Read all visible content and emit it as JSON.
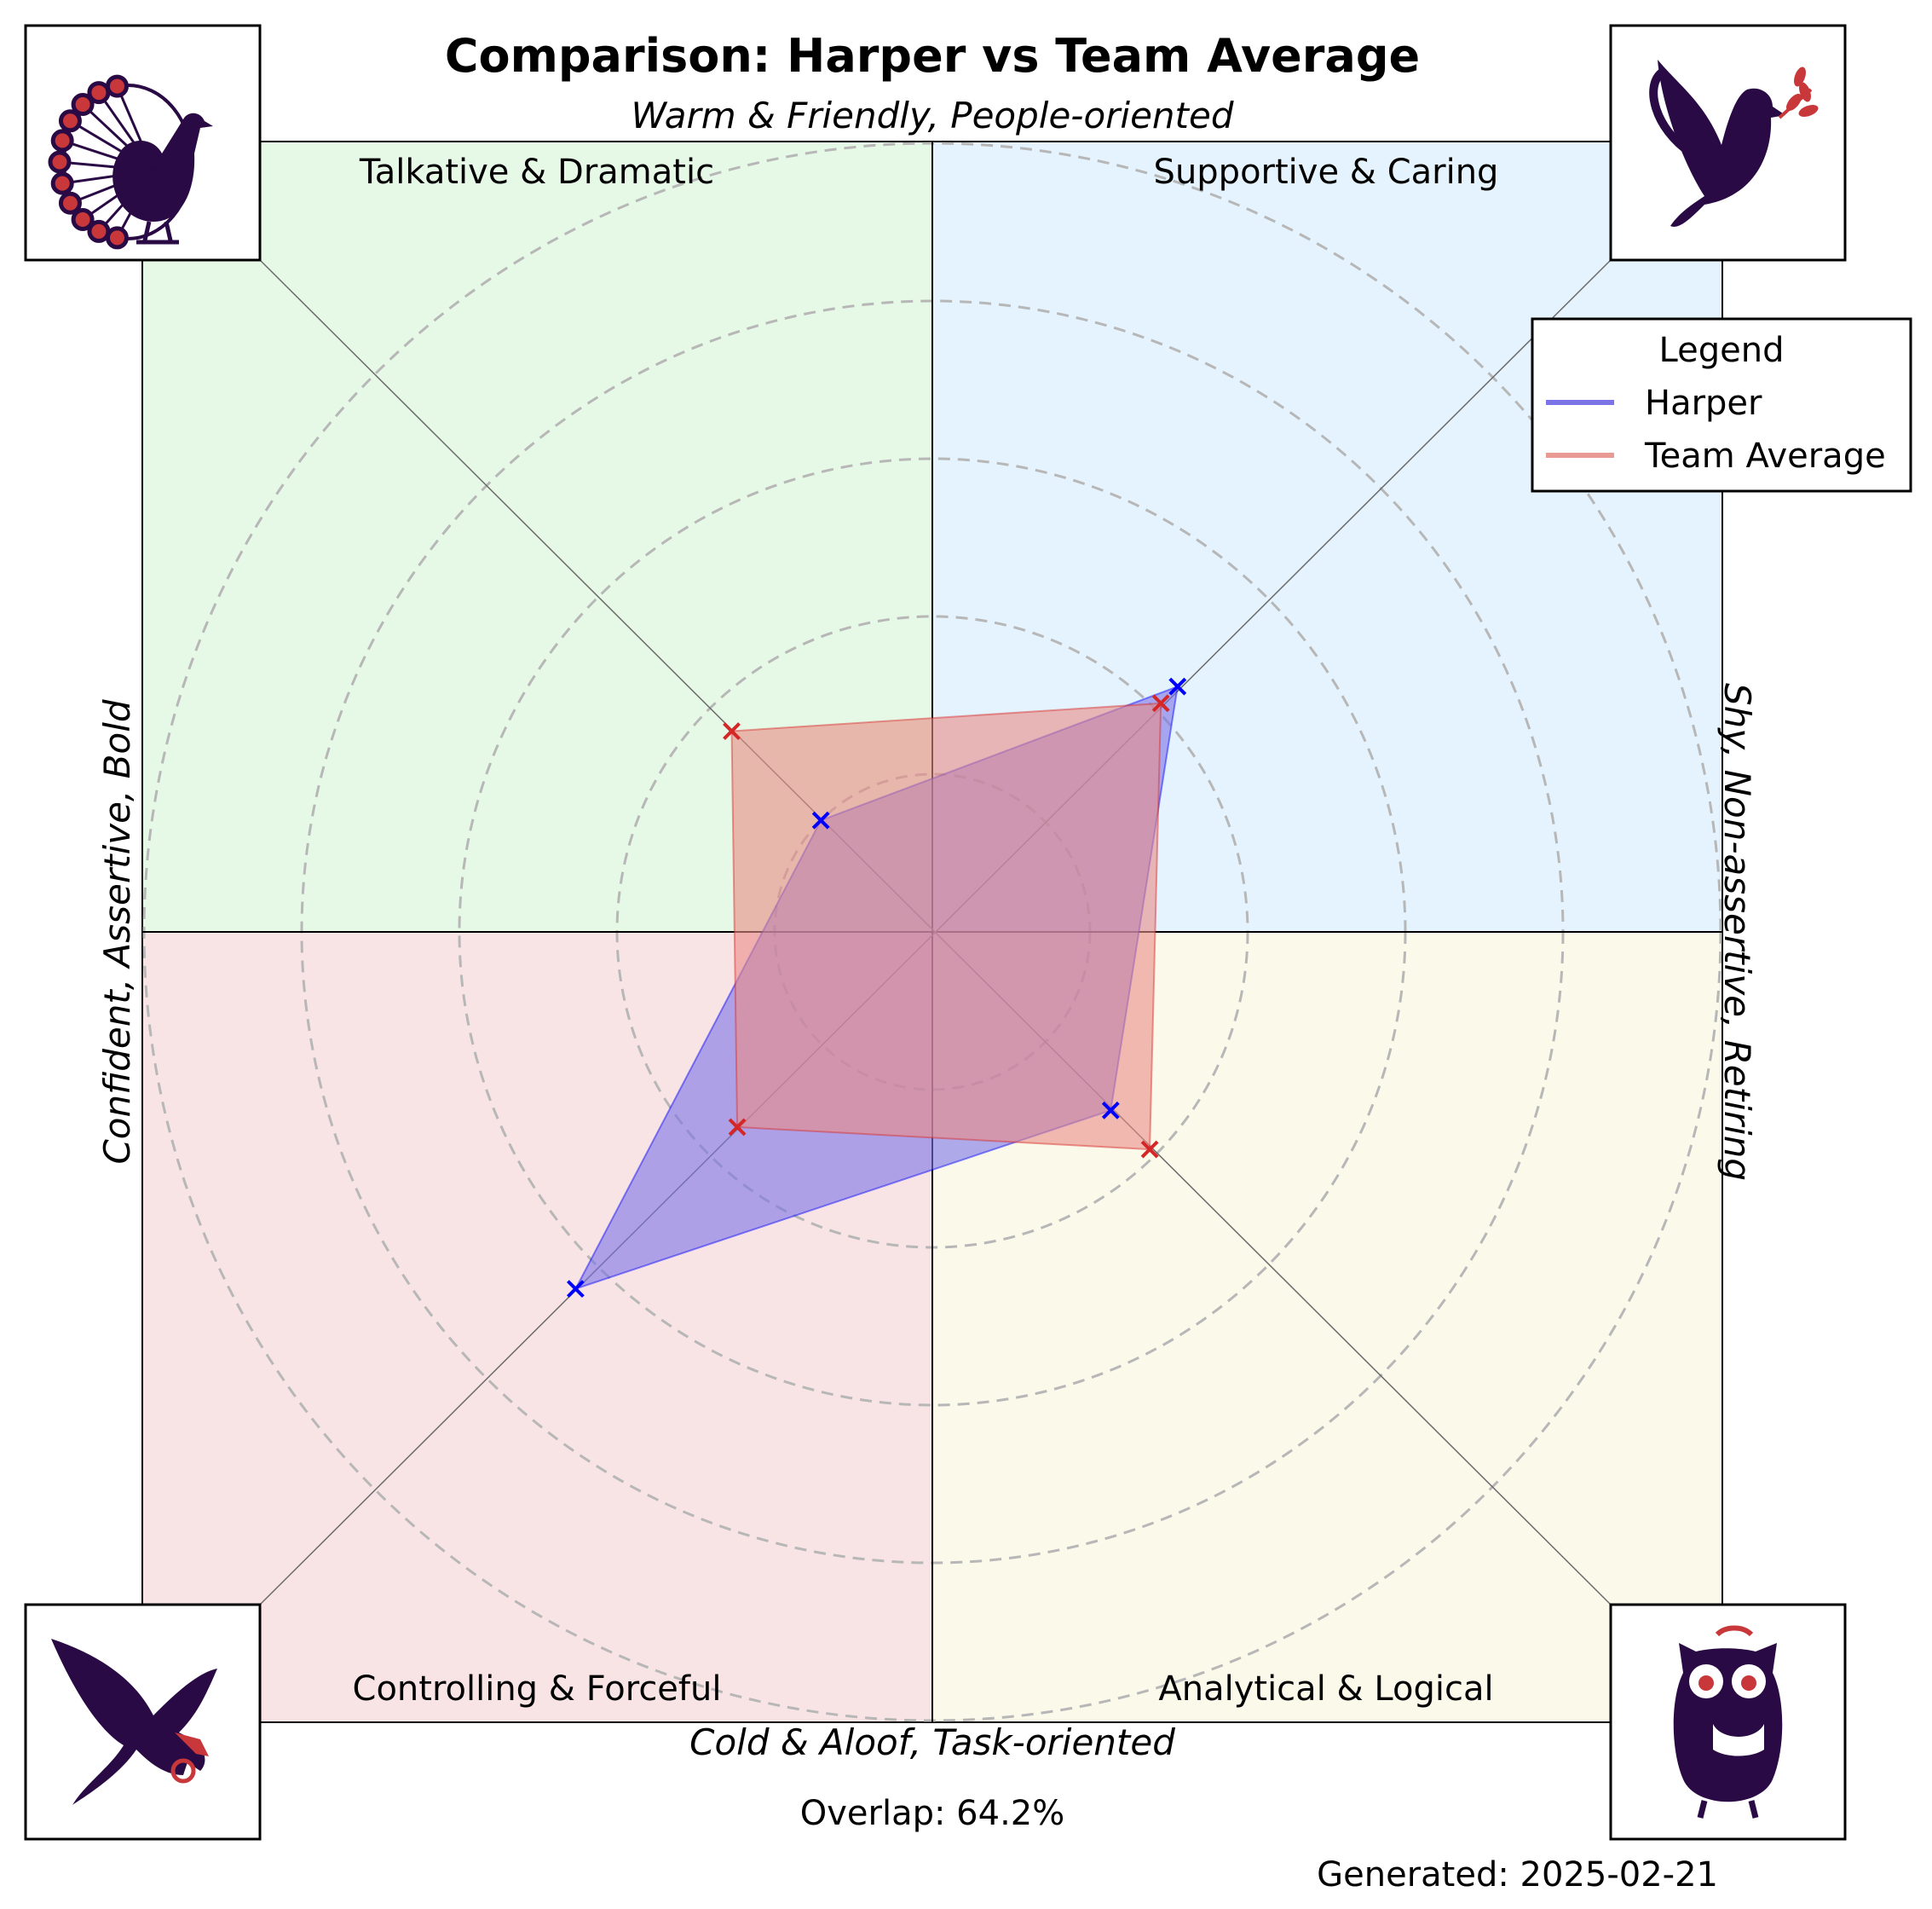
{
  "chart_data": {
    "type": "radar",
    "title": "Comparison: Harper vs Team Average",
    "axis_labels": {
      "top": "Warm & Friendly, People-oriented",
      "bottom": "Cold & Aloof, Task-oriented",
      "left": "Confident, Assertive, Bold",
      "right": "Shy, Non-assertive, Retiring"
    },
    "quadrants": [
      {
        "label": "Talkative & Dramatic",
        "position": "top-left",
        "color": "#e6f8e6",
        "icon": "peacock-icon"
      },
      {
        "label": "Supportive & Caring",
        "position": "top-right",
        "color": "#e4f3fd",
        "icon": "dove-icon"
      },
      {
        "label": "Controlling & Forceful",
        "position": "bottom-left",
        "color": "#f9e4e5",
        "icon": "eagle-icon"
      },
      {
        "label": "Analytical & Logical",
        "position": "bottom-right",
        "color": "#faf9ea",
        "icon": "owl-icon"
      }
    ],
    "radial_max": 5,
    "rings": [
      1,
      2,
      3,
      4,
      5
    ],
    "grid": true,
    "directions": [
      "Supportive & Caring",
      "Talkative & Dramatic",
      "Controlling & Forceful",
      "Analytical & Logical"
    ],
    "series": [
      {
        "name": "Harper",
        "color": "#0000ff",
        "fill": "#7b73e6",
        "values": [
          2.2,
          1.0,
          3.2,
          1.6
        ]
      },
      {
        "name": "Team Average",
        "color": "#d62728",
        "fill": "#e98c85",
        "values": [
          2.05,
          1.8,
          1.75,
          1.95
        ]
      }
    ],
    "legend": {
      "title": "Legend",
      "position": "top-right"
    },
    "overlap_text": "Overlap: 64.2%",
    "generated_text": "Generated: 2025-02-21"
  }
}
